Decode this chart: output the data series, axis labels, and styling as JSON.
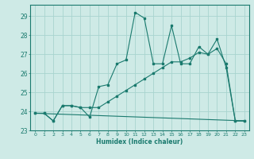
{
  "xlabel": "Humidex (Indice chaleur)",
  "bg_color": "#ceeae6",
  "grid_color": "#a8d4cf",
  "line_color": "#1a7a6e",
  "xlim": [
    -0.5,
    23.5
  ],
  "ylim": [
    23,
    29.6
  ],
  "xticks": [
    0,
    1,
    2,
    3,
    4,
    5,
    6,
    7,
    8,
    9,
    10,
    11,
    12,
    13,
    14,
    15,
    16,
    17,
    18,
    19,
    20,
    21,
    22,
    23
  ],
  "yticks": [
    23,
    24,
    25,
    26,
    27,
    28,
    29
  ],
  "series1_x": [
    0,
    1,
    2,
    3,
    4,
    5,
    6,
    7,
    8,
    9,
    10,
    11,
    12,
    13,
    14,
    15,
    16,
    17,
    18,
    19,
    20,
    21,
    22,
    23
  ],
  "series1_y": [
    23.9,
    23.9,
    23.5,
    24.3,
    24.3,
    24.2,
    23.7,
    25.3,
    25.4,
    26.5,
    26.7,
    29.2,
    28.9,
    26.5,
    26.5,
    28.5,
    26.5,
    26.5,
    27.4,
    27.0,
    27.8,
    26.3,
    23.5,
    23.5
  ],
  "series2_x": [
    0,
    1,
    2,
    3,
    4,
    5,
    6,
    7,
    8,
    9,
    10,
    11,
    12,
    13,
    14,
    15,
    16,
    17,
    18,
    19,
    20,
    21,
    22,
    23
  ],
  "series2_y": [
    23.9,
    23.9,
    23.5,
    24.3,
    24.3,
    24.2,
    24.2,
    24.2,
    24.5,
    24.8,
    25.1,
    25.4,
    25.7,
    26.0,
    26.3,
    26.6,
    26.6,
    26.8,
    27.1,
    27.0,
    27.3,
    26.5,
    23.5,
    23.5
  ],
  "series3_x": [
    0,
    23
  ],
  "series3_y": [
    23.9,
    23.5
  ]
}
